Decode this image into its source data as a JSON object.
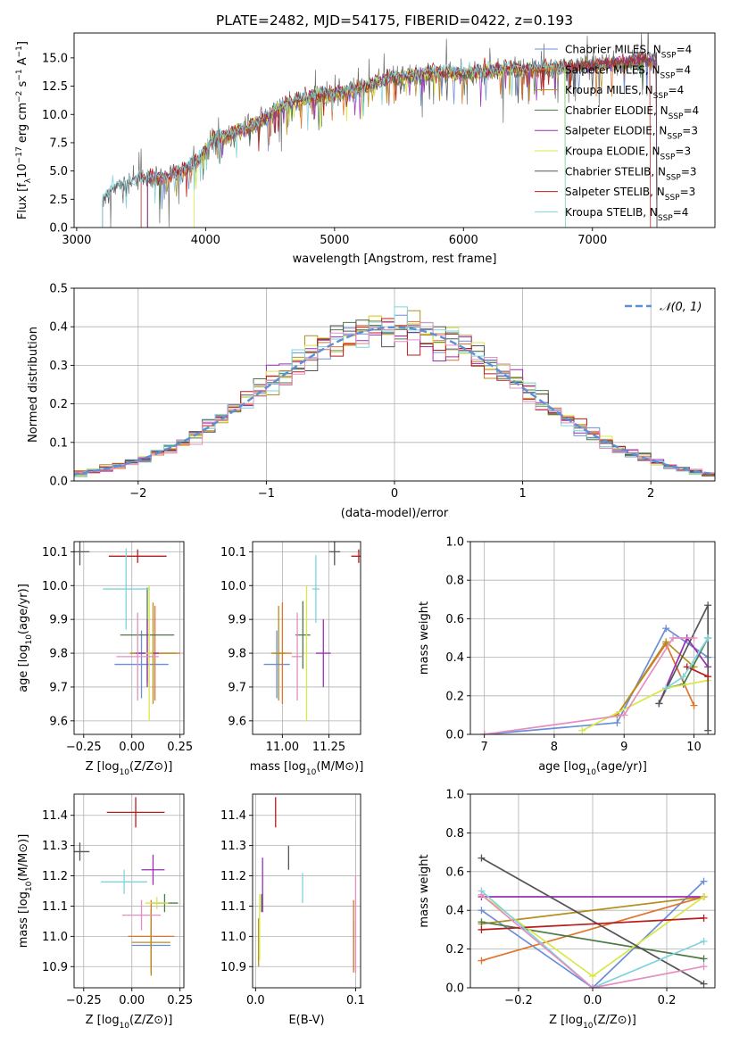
{
  "colors": {
    "CM": "#6a8fd8",
    "SM": "#e0742b",
    "KM": "#b58e1e",
    "CE": "#4e7a4a",
    "SE": "#9a2fb4",
    "KE": "#d8e845",
    "CS": "#555555",
    "SS": "#b81c1c",
    "KS": "#7fd3dc",
    "pink": "#e48fc0",
    "axis": "#000000",
    "grid": "#b0b0b0",
    "data": "#6e6e6e"
  },
  "chart_data": [
    {
      "id": "spectrum",
      "type": "line",
      "title": "PLATE=2482, MJD=54175, FIBERID=0422, z=0.193",
      "xlabel": "wavelength [Angstrom, rest frame]",
      "ylabel_parts": [
        "Flux [f",
        "λ",
        "10",
        "−17",
        " erg cm",
        "−2",
        " s",
        "−1",
        " A",
        "−1",
        "]"
      ],
      "xlim": [
        2980,
        7950
      ],
      "ylim": [
        0,
        17.2
      ],
      "xticks": [
        3000,
        4000,
        5000,
        6000,
        7000
      ],
      "yticks": [
        "0.0",
        "2.5",
        "5.0",
        "7.5",
        "10.0",
        "12.5",
        "15.0"
      ],
      "ytick_values": [
        0,
        2.5,
        5,
        7.5,
        10,
        12.5,
        15
      ],
      "anchors": [
        [
          3200,
          2.4
        ],
        [
          3300,
          3.6
        ],
        [
          3500,
          4.3
        ],
        [
          3700,
          4.5
        ],
        [
          3850,
          5.2
        ],
        [
          3950,
          6.0
        ],
        [
          4050,
          7.7
        ],
        [
          4200,
          8.3
        ],
        [
          4400,
          9.2
        ],
        [
          4600,
          10.8
        ],
        [
          4800,
          11.5
        ],
        [
          5000,
          11.8
        ],
        [
          5200,
          12.3
        ],
        [
          5400,
          13.2
        ],
        [
          5600,
          13.5
        ],
        [
          5800,
          13.7
        ],
        [
          6000,
          13.6
        ],
        [
          6200,
          13.9
        ],
        [
          6400,
          14.0
        ],
        [
          6600,
          14.0
        ],
        [
          6800,
          14.2
        ],
        [
          7000,
          14.4
        ],
        [
          7200,
          14.6
        ],
        [
          7400,
          14.8
        ],
        [
          7500,
          14.9
        ]
      ],
      "models_start": [
        3550,
        3550,
        3550,
        3550,
        3550,
        3910,
        3200,
        3500,
        3200
      ],
      "models_end": [
        7500,
        7500,
        7500,
        7500,
        7500,
        6790,
        7500,
        7450,
        6790
      ],
      "legend_position": "top-right",
      "legend": [
        {
          "key": "CM",
          "label": "Chabrier MILES, N",
          "sub": "SSP",
          "suffix": "=4"
        },
        {
          "key": "SM",
          "label": "Salpeter MILES, N",
          "sub": "SSP",
          "suffix": "=4"
        },
        {
          "key": "KM",
          "label": "Kroupa MILES, N",
          "sub": "SSP",
          "suffix": "=4"
        },
        {
          "key": "CE",
          "label": "Chabrier ELODIE, N",
          "sub": "SSP",
          "suffix": "=4"
        },
        {
          "key": "SE",
          "label": "Salpeter ELODIE, N",
          "sub": "SSP",
          "suffix": "=3"
        },
        {
          "key": "KE",
          "label": "Kroupa ELODIE, N",
          "sub": "SSP",
          "suffix": "=3"
        },
        {
          "key": "CS",
          "label": "Chabrier STELIB, N",
          "sub": "SSP",
          "suffix": "=3"
        },
        {
          "key": "SS",
          "label": "Salpeter STELIB, N",
          "sub": "SSP",
          "suffix": "=3"
        },
        {
          "key": "KS",
          "label": "Kroupa STELIB, N",
          "sub": "SSP",
          "suffix": "=4"
        }
      ]
    },
    {
      "id": "residuals",
      "type": "histogram",
      "xlabel": "(data-model)/error",
      "ylabel": "Normed distribution",
      "xlim": [
        -2.5,
        2.5
      ],
      "ylim": [
        0,
        0.5
      ],
      "xticks": [
        -2,
        -1,
        0,
        1,
        2
      ],
      "xtick_labels": [
        "−2",
        "−1",
        "0",
        "1",
        "2"
      ],
      "yticks": [
        "0.0",
        "0.1",
        "0.2",
        "0.3",
        "0.4",
        "0.5"
      ],
      "ytick_values": [
        0,
        0.1,
        0.2,
        0.3,
        0.4,
        0.5
      ],
      "bin_width": 0.1,
      "normal_label": "𝒩(0, 1)",
      "legend_position": "top-right"
    },
    {
      "id": "age-vs-Z",
      "type": "scatter-errorbar",
      "xlabel": "Z [log10(Z/Z⊙)]",
      "ylabel": "age [log10(age/yr)]",
      "xlim": [
        -0.3,
        0.27
      ],
      "ylim": [
        9.56,
        10.13
      ],
      "xticks": [
        "−0.25",
        "0.00",
        "0.25"
      ],
      "xtick_values": [
        -0.25,
        0,
        0.25
      ],
      "yticks": [
        "9.6",
        "9.7",
        "9.8",
        "9.9",
        "10.0",
        "10.1"
      ],
      "ytick_values": [
        9.6,
        9.7,
        9.8,
        9.9,
        10.0,
        10.1
      ],
      "points": [
        {
          "c": "CM",
          "x": 0.05,
          "xerr": 0.14,
          "y": 9.767,
          "yerr": 0.1
        },
        {
          "c": "SM",
          "x": 0.12,
          "xerr": 0.13,
          "y": 9.8,
          "yerr": 0.14
        },
        {
          "c": "KM",
          "x": 0.11,
          "xerr": 0.12,
          "y": 9.8,
          "yerr": 0.15
        },
        {
          "c": "CE",
          "x": 0.08,
          "xerr": 0.14,
          "y": 9.854,
          "yerr": 0.14
        },
        {
          "c": "SE",
          "x": 0.08,
          "xerr": 0.06,
          "y": 9.8,
          "yerr": 0.1
        },
        {
          "c": "KE",
          "x": 0.09,
          "xerr": 0.02,
          "y": 9.8,
          "yerr": 0.2
        },
        {
          "c": "CS",
          "x": -0.27,
          "xerr": 0.05,
          "y": 10.1,
          "yerr": 0.04
        },
        {
          "c": "SS",
          "x": 0.03,
          "xerr": 0.15,
          "y": 10.087,
          "yerr": 0.02
        },
        {
          "c": "KS",
          "x": -0.03,
          "xerr": 0.12,
          "y": 9.99,
          "yerr": 0.12
        },
        {
          "c": "pink",
          "x": 0.03,
          "xerr": 0.11,
          "y": 9.79,
          "yerr": 0.13
        }
      ]
    },
    {
      "id": "age-vs-mass",
      "type": "scatter-errorbar",
      "xlabel": "mass [log10(M/M⊙)]",
      "xlim": [
        10.84,
        11.42
      ],
      "ylim": [
        9.56,
        10.13
      ],
      "xticks": [
        "11.00",
        "11.25"
      ],
      "xtick_values": [
        11.0,
        11.25
      ],
      "yticks": [
        "9.6",
        "9.7",
        "9.8",
        "9.9",
        "10.0",
        "10.1"
      ],
      "ytick_values": [
        9.6,
        9.7,
        9.8,
        9.9,
        10.0,
        10.1
      ],
      "points": [
        {
          "c": "CM",
          "x": 10.97,
          "xerr": 0.07,
          "y": 9.767,
          "yerr": 0.1
        },
        {
          "c": "SM",
          "x": 11.0,
          "xerr": 0.05,
          "y": 9.8,
          "yerr": 0.15
        },
        {
          "c": "KM",
          "x": 10.98,
          "xerr": 0.04,
          "y": 9.8,
          "yerr": 0.14
        },
        {
          "c": "CE",
          "x": 11.11,
          "xerr": 0.04,
          "y": 9.854,
          "yerr": 0.1
        },
        {
          "c": "SE",
          "x": 11.22,
          "xerr": 0.04,
          "y": 9.8,
          "yerr": 0.1
        },
        {
          "c": "KE",
          "x": 11.13,
          "xerr": 0.01,
          "y": 9.8,
          "yerr": 0.2
        },
        {
          "c": "CS",
          "x": 11.28,
          "xerr": 0.03,
          "y": 10.1,
          "yerr": 0.04
        },
        {
          "c": "SS",
          "x": 11.41,
          "xerr": 0.04,
          "y": 10.087,
          "yerr": 0.02
        },
        {
          "c": "KS",
          "x": 11.18,
          "xerr": 0.02,
          "y": 9.99,
          "yerr": 0.1
        },
        {
          "c": "pink",
          "x": 11.08,
          "xerr": 0.03,
          "y": 9.79,
          "yerr": 0.13
        }
      ]
    },
    {
      "id": "massweight-vs-age",
      "type": "line",
      "xlabel": "age [log10(age/yr)]",
      "ylabel": "mass weight",
      "xlim": [
        6.8,
        10.3
      ],
      "ylim": [
        0,
        1.0
      ],
      "xticks": [
        "7",
        "8",
        "9",
        "10"
      ],
      "xtick_values": [
        7,
        8,
        9,
        10
      ],
      "yticks": [
        "0.0",
        "0.2",
        "0.4",
        "0.6",
        "0.8",
        "1.0"
      ],
      "ytick_values": [
        0,
        0.2,
        0.4,
        0.6,
        0.8,
        1.0
      ],
      "series": [
        {
          "c": "CM",
          "pts": [
            [
              7.0,
              0.0
            ],
            [
              8.9,
              0.06
            ],
            [
              9.6,
              0.55
            ],
            [
              10.2,
              0.4
            ]
          ]
        },
        {
          "c": "SM",
          "pts": [
            [
              8.9,
              0.1
            ],
            [
              9.6,
              0.47
            ],
            [
              10.0,
              0.15
            ]
          ]
        },
        {
          "c": "KM",
          "pts": [
            [
              8.9,
              0.1
            ],
            [
              9.6,
              0.48
            ],
            [
              10.0,
              0.35
            ]
          ]
        },
        {
          "c": "CE",
          "pts": [
            [
              9.6,
              0.24
            ],
            [
              9.85,
              0.26
            ],
            [
              10.2,
              0.5
            ]
          ]
        },
        {
          "c": "SE",
          "pts": [
            [
              9.5,
              0.16
            ],
            [
              9.9,
              0.5
            ],
            [
              10.2,
              0.35
            ]
          ]
        },
        {
          "c": "KE",
          "pts": [
            [
              8.4,
              0.02
            ],
            [
              9.6,
              0.24
            ],
            [
              10.2,
              0.28
            ]
          ]
        },
        {
          "c": "CS",
          "pts": [
            [
              9.5,
              0.16
            ],
            [
              10.2,
              0.67
            ],
            [
              10.2,
              0.02
            ]
          ]
        },
        {
          "c": "SS",
          "pts": [
            [
              9.9,
              0.35
            ],
            [
              10.2,
              0.3
            ]
          ]
        },
        {
          "c": "KS",
          "pts": [
            [
              9.6,
              0.24
            ],
            [
              9.85,
              0.3
            ],
            [
              10.2,
              0.5
            ]
          ]
        },
        {
          "c": "pink",
          "pts": [
            [
              7.0,
              0.0
            ],
            [
              9.0,
              0.1
            ],
            [
              9.7,
              0.5
            ],
            [
              10.0,
              0.5
            ]
          ]
        }
      ]
    },
    {
      "id": "mass-vs-Z",
      "type": "scatter-errorbar",
      "xlabel": "Z [log10(Z/Z⊙)]",
      "ylabel": "mass [log10(M/M⊙)]",
      "xlim": [
        -0.3,
        0.27
      ],
      "ylim": [
        10.83,
        11.47
      ],
      "xticks": [
        "−0.25",
        "0.00",
        "0.25"
      ],
      "xtick_values": [
        -0.25,
        0,
        0.25
      ],
      "yticks": [
        "10.9",
        "11.0",
        "11.1",
        "11.2",
        "11.3",
        "11.4"
      ],
      "ytick_values": [
        10.9,
        11.0,
        11.1,
        11.2,
        11.3,
        11.4
      ],
      "points": [
        {
          "c": "CM",
          "x": 0.1,
          "xerr": 0.1,
          "y": 10.97,
          "yerr": 0.07
        },
        {
          "c": "SM",
          "x": 0.1,
          "xerr": 0.12,
          "y": 11.0,
          "yerr": 0.12
        },
        {
          "c": "KM",
          "x": 0.1,
          "xerr": 0.1,
          "y": 10.98,
          "yerr": 0.11
        },
        {
          "c": "CE",
          "x": 0.17,
          "xerr": 0.07,
          "y": 11.11,
          "yerr": 0.03
        },
        {
          "c": "SE",
          "x": 0.11,
          "xerr": 0.06,
          "y": 11.22,
          "yerr": 0.05
        },
        {
          "c": "KE",
          "x": 0.13,
          "xerr": 0.06,
          "y": 11.11,
          "yerr": 0.02
        },
        {
          "c": "CS",
          "x": -0.27,
          "xerr": 0.05,
          "y": 11.28,
          "yerr": 0.03
        },
        {
          "c": "SS",
          "x": 0.02,
          "xerr": 0.15,
          "y": 11.41,
          "yerr": 0.05
        },
        {
          "c": "KS",
          "x": -0.04,
          "xerr": 0.12,
          "y": 11.18,
          "yerr": 0.04
        },
        {
          "c": "pink",
          "x": 0.05,
          "xerr": 0.1,
          "y": 11.07,
          "yerr": 0.05
        }
      ]
    },
    {
      "id": "mass-vs-EBV",
      "type": "scatter-errorbar",
      "xlabel": "E(B-V)",
      "xlim": [
        -0.003,
        0.105
      ],
      "ylim": [
        10.83,
        11.47
      ],
      "xticks": [
        "0.0",
        "0.1"
      ],
      "xtick_values": [
        0.0,
        0.1
      ],
      "yticks": [
        "10.9",
        "11.0",
        "11.1",
        "11.2",
        "11.3",
        "11.4"
      ],
      "ytick_values": [
        10.9,
        11.0,
        11.1,
        11.2,
        11.3,
        11.4
      ],
      "points": [
        {
          "c": "CM",
          "x": 0.098,
          "xerr": 0,
          "y": 10.97,
          "yerr": 0.08
        },
        {
          "c": "SM",
          "x": 0.098,
          "xerr": 0,
          "y": 11.0,
          "yerr": 0.12
        },
        {
          "c": "KM",
          "x": 0.003,
          "xerr": 0,
          "y": 10.98,
          "yerr": 0.08
        },
        {
          "c": "CE",
          "x": 0.006,
          "xerr": 0,
          "y": 11.11,
          "yerr": 0.03
        },
        {
          "c": "SE",
          "x": 0.007,
          "xerr": 0,
          "y": 11.17,
          "yerr": 0.09
        },
        {
          "c": "KE",
          "x": 0.004,
          "xerr": 0,
          "y": 11.03,
          "yerr": 0.11
        },
        {
          "c": "CS",
          "x": 0.033,
          "xerr": 0,
          "y": 11.26,
          "yerr": 0.04
        },
        {
          "c": "SS",
          "x": 0.02,
          "xerr": 0,
          "y": 11.41,
          "yerr": 0.05
        },
        {
          "c": "KS",
          "x": 0.047,
          "xerr": 0,
          "y": 11.16,
          "yerr": 0.05
        },
        {
          "c": "pink",
          "x": 0.1,
          "xerr": 0,
          "y": 11.04,
          "yerr": 0.16
        }
      ]
    },
    {
      "id": "massweight-vs-Z",
      "type": "line",
      "xlabel": "Z [log10(Z/Z⊙)]",
      "ylabel": "mass weight",
      "xlim": [
        -0.33,
        0.33
      ],
      "ylim": [
        0,
        1.0
      ],
      "xticks": [
        "−0.2",
        "0.0",
        "0.2"
      ],
      "xtick_values": [
        -0.2,
        0.0,
        0.2
      ],
      "yticks": [
        "0.0",
        "0.2",
        "0.4",
        "0.6",
        "0.8",
        "1.0"
      ],
      "ytick_values": [
        0,
        0.2,
        0.4,
        0.6,
        0.8,
        1.0
      ],
      "series": [
        {
          "c": "CM",
          "pts": [
            [
              -0.3,
              0.4
            ],
            [
              0.0,
              0.0
            ],
            [
              0.3,
              0.55
            ]
          ]
        },
        {
          "c": "SM",
          "pts": [
            [
              -0.3,
              0.14
            ],
            [
              0.3,
              0.47
            ]
          ]
        },
        {
          "c": "KM",
          "pts": [
            [
              -0.3,
              0.33
            ],
            [
              0.3,
              0.47
            ]
          ]
        },
        {
          "c": "CE",
          "pts": [
            [
              -0.3,
              0.34
            ],
            [
              0.3,
              0.15
            ]
          ]
        },
        {
          "c": "SE",
          "pts": [
            [
              -0.3,
              0.47
            ],
            [
              0.3,
              0.47
            ]
          ]
        },
        {
          "c": "KE",
          "pts": [
            [
              -0.3,
              0.48
            ],
            [
              0.0,
              0.06
            ],
            [
              0.3,
              0.47
            ]
          ]
        },
        {
          "c": "CS",
          "pts": [
            [
              -0.3,
              0.67
            ],
            [
              0.3,
              0.02
            ]
          ]
        },
        {
          "c": "SS",
          "pts": [
            [
              -0.3,
              0.3
            ],
            [
              0.3,
              0.36
            ]
          ]
        },
        {
          "c": "KS",
          "pts": [
            [
              -0.3,
              0.5
            ],
            [
              0.0,
              0.0
            ],
            [
              0.3,
              0.24
            ]
          ]
        },
        {
          "c": "pink",
          "pts": [
            [
              -0.3,
              0.48
            ],
            [
              0.0,
              0.0
            ],
            [
              0.3,
              0.11
            ]
          ]
        }
      ]
    }
  ]
}
